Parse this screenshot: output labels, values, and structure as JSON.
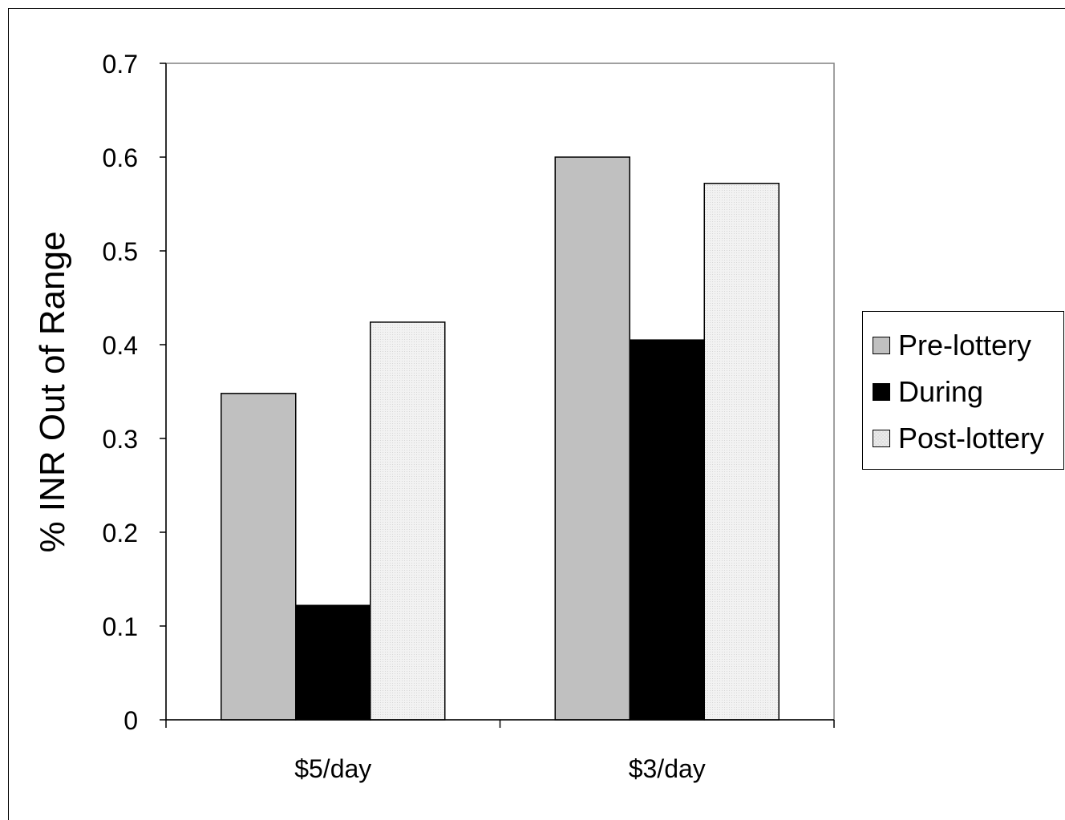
{
  "chart_data": {
    "type": "bar",
    "title": "",
    "xlabel": "",
    "ylabel": "% INR Out of Range",
    "categories": [
      "$5/day",
      "$3/day"
    ],
    "series": [
      {
        "name": "Pre-lottery",
        "values": [
          0.348,
          0.6
        ],
        "color": "#c0c0c0"
      },
      {
        "name": "During",
        "values": [
          0.122,
          0.405
        ],
        "color": "#000000"
      },
      {
        "name": "Post-lottery",
        "values": [
          0.424,
          0.572
        ],
        "color": "#ececec"
      }
    ],
    "ylim": [
      0,
      0.7
    ],
    "yticks": [
      "0",
      "0.1",
      "0.2",
      "0.3",
      "0.4",
      "0.5",
      "0.6",
      "0.7"
    ],
    "grid": false,
    "legend_position": "right"
  }
}
